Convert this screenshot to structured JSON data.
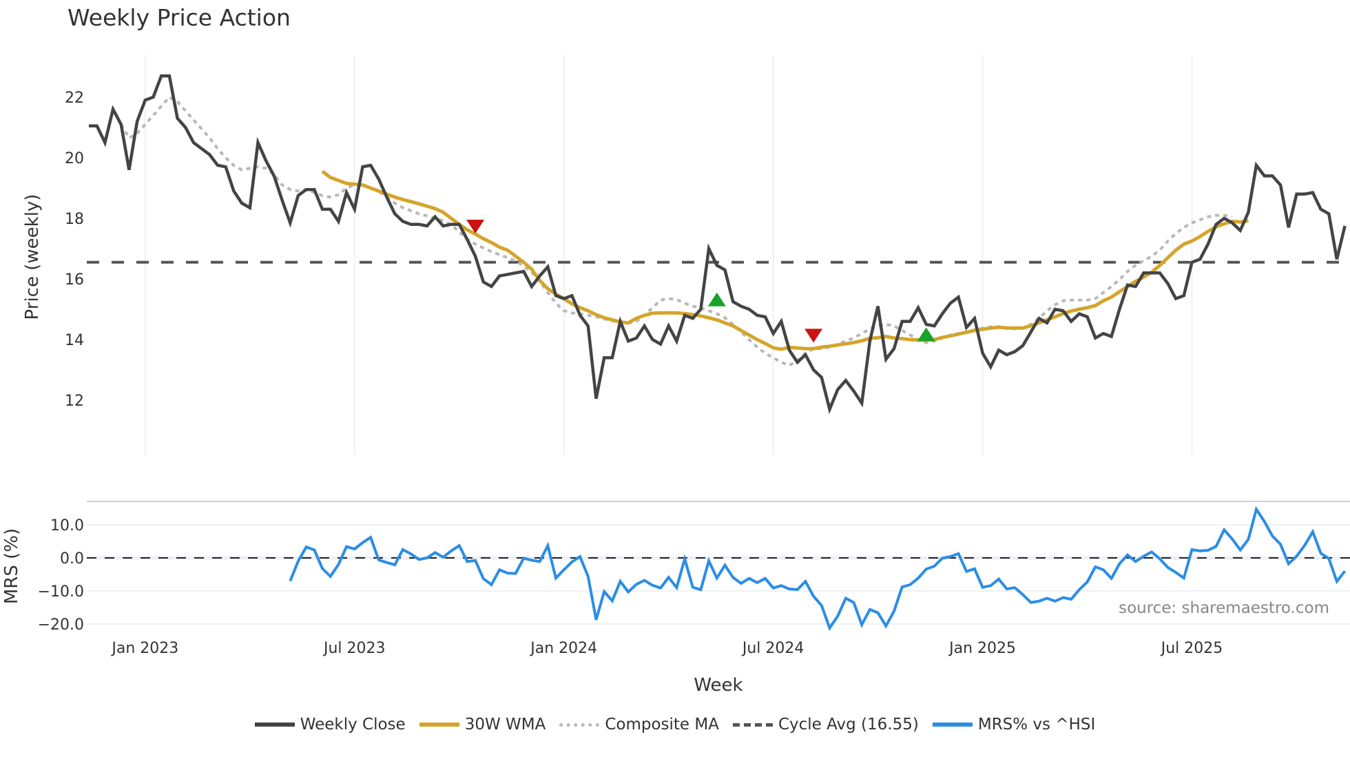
{
  "title": "Weekly Price Action",
  "watermark": "source: sharemaestro.com",
  "axes": {
    "price_ylabel": "Price (weekly)",
    "mrs_ylabel": "MRS (%)",
    "xlabel": "Week",
    "price_ticks": [
      "12",
      "14",
      "16",
      "18",
      "20",
      "22"
    ],
    "mrs_ticks": [
      "10.0",
      "0.0",
      "−10.0",
      "−20.0"
    ],
    "x_ticks": [
      "Jan 2023",
      "Jul 2023",
      "Jan 2024",
      "Jul 2024",
      "Jan 2025",
      "Jul 2025"
    ]
  },
  "legend": [
    {
      "label": "Weekly Close",
      "style": "solid-dark"
    },
    {
      "label": "30W WMA",
      "style": "gold"
    },
    {
      "label": "Composite MA",
      "style": "dot"
    },
    {
      "label": "Cycle Avg (16.55)",
      "style": "dash"
    },
    {
      "label": "MRS% vs ^HSI",
      "style": "blue"
    }
  ],
  "colors": {
    "close": "#444444",
    "wma": "#d4a52b",
    "composite": "#b8b8b8",
    "cycle": "#555555",
    "mrs": "#2b8de6",
    "sell_marker": "#cc1111",
    "buy_marker": "#1aa32a",
    "grid": "#eef0f4"
  },
  "chart_data": [
    {
      "type": "line",
      "title": "Weekly Price Action",
      "xlabel": "Week",
      "ylabel": "Price (weekly)",
      "ylim": [
        11,
        23.3
      ],
      "grid": true,
      "legend_position": "bottom",
      "x_tick_labels": [
        "Jan 2023",
        "Jul 2023",
        "Jan 2024",
        "Jul 2024",
        "Jan 2025",
        "Jul 2025"
      ],
      "x_tick_week_index": [
        7,
        33,
        59,
        85,
        111,
        137
      ],
      "y_ticks": [
        12,
        14,
        16,
        18,
        20,
        22
      ],
      "series": [
        {
          "name": "Weekly Close",
          "start_week": 0,
          "values": [
            21.05,
            21.05,
            20.5,
            21.6,
            21.1,
            19.6,
            21.2,
            21.9,
            22.0,
            22.7,
            22.7,
            21.3,
            21.0,
            20.5,
            20.3,
            20.1,
            19.75,
            19.7,
            18.9,
            18.5,
            18.35,
            20.5,
            19.9,
            19.4,
            18.6,
            17.85,
            18.75,
            18.95,
            18.95,
            18.3,
            18.3,
            17.9,
            18.85,
            18.3,
            19.7,
            19.75,
            19.3,
            18.7,
            18.15,
            17.9,
            17.8,
            17.8,
            17.75,
            18.05,
            17.75,
            17.8,
            17.8,
            17.3,
            16.75,
            15.9,
            15.75,
            16.1,
            16.15,
            16.2,
            16.25,
            15.75,
            16.1,
            16.4,
            15.45,
            15.35,
            15.45,
            14.8,
            14.45,
            12.05,
            13.4,
            13.4,
            14.6,
            13.95,
            14.05,
            14.45,
            14.0,
            13.85,
            14.45,
            13.95,
            14.8,
            14.7,
            15.0,
            17.0,
            16.45,
            16.3,
            15.25,
            15.1,
            15.0,
            14.8,
            14.75,
            14.2,
            14.6,
            13.65,
            13.25,
            13.5,
            13.0,
            12.75,
            11.7,
            12.35,
            12.65,
            12.3,
            11.9,
            13.95,
            15.1,
            13.35,
            13.7,
            14.6,
            14.6,
            15.05,
            14.5,
            14.45,
            14.85,
            15.2,
            15.4,
            14.4,
            14.7,
            13.55,
            13.1,
            13.65,
            13.5,
            13.6,
            13.8,
            14.25,
            14.7,
            14.55,
            15.0,
            14.95,
            14.6,
            14.85,
            14.75,
            14.05,
            14.2,
            14.1,
            15.0,
            15.8,
            15.75,
            16.2,
            16.2,
            16.2,
            15.85,
            15.35,
            15.45,
            16.55,
            16.65,
            17.15,
            17.8,
            18.0,
            17.85,
            17.6,
            18.2,
            19.75,
            19.4,
            19.4,
            19.1,
            17.7,
            18.8,
            18.8,
            18.85,
            18.3,
            18.15,
            16.65,
            17.75
          ]
        },
        {
          "name": "30W WMA",
          "start_week": 29,
          "values": [
            19.55,
            19.35,
            19.25,
            19.15,
            19.13,
            19.1,
            19.0,
            18.9,
            18.8,
            18.7,
            18.62,
            18.55,
            18.48,
            18.4,
            18.32,
            18.2,
            18.0,
            17.8,
            17.62,
            17.48,
            17.33,
            17.2,
            17.05,
            16.95,
            16.75,
            16.55,
            16.32,
            15.95,
            15.68,
            15.5,
            15.35,
            15.18,
            15.05,
            14.95,
            14.82,
            14.72,
            14.65,
            14.58,
            14.55,
            14.7,
            14.8,
            14.87,
            14.88,
            14.88,
            14.88,
            14.86,
            14.82,
            14.78,
            14.72,
            14.65,
            14.55,
            14.45,
            14.3,
            14.15,
            14.0,
            13.87,
            13.73,
            13.68,
            13.74,
            13.72,
            13.7,
            13.7,
            13.75,
            13.78,
            13.82,
            13.86,
            13.9,
            13.96,
            14.04,
            14.06,
            14.1,
            14.05,
            14.03,
            14.0,
            13.98,
            13.98,
            14.0,
            14.07,
            14.12,
            14.18,
            14.24,
            14.3,
            14.34,
            14.38,
            14.41,
            14.38,
            14.38,
            14.38,
            14.46,
            14.55,
            14.65,
            14.75,
            14.86,
            14.94,
            15.0,
            15.05,
            15.12,
            15.28,
            15.4,
            15.58,
            15.75,
            15.92,
            16.06,
            16.22,
            16.45,
            16.7,
            16.95,
            17.15,
            17.25,
            17.4,
            17.57,
            17.72,
            17.82,
            17.9,
            17.88,
            17.92
          ]
        },
        {
          "name": "Composite MA",
          "start_week": 4,
          "values": [
            21.1,
            20.65,
            20.8,
            21.1,
            21.4,
            21.7,
            22.0,
            21.85,
            21.55,
            21.25,
            20.95,
            20.65,
            20.3,
            20.0,
            19.75,
            19.6,
            19.65,
            19.7,
            19.65,
            19.45,
            19.1,
            18.95,
            18.9,
            18.95,
            18.85,
            18.75,
            18.7,
            18.78,
            19.0,
            19.1,
            19.1,
            19.0,
            18.9,
            18.7,
            18.5,
            18.35,
            18.25,
            18.15,
            18.08,
            18.0,
            17.92,
            17.8,
            17.55,
            17.3,
            17.15,
            17.02,
            16.9,
            16.8,
            16.7,
            16.6,
            16.42,
            16.22,
            15.92,
            15.55,
            15.2,
            14.95,
            14.88,
            14.85,
            14.8,
            14.75,
            14.68,
            14.62,
            14.55,
            14.55,
            14.6,
            14.8,
            15.05,
            15.3,
            15.35,
            15.32,
            15.2,
            15.1,
            15.05,
            14.95,
            14.85,
            14.72,
            14.5,
            14.25,
            14.0,
            13.75,
            13.55,
            13.4,
            13.25,
            13.15,
            13.3,
            13.55,
            13.7,
            13.7,
            13.75,
            13.85,
            13.95,
            14.05,
            14.2,
            14.35,
            14.45,
            14.5,
            14.45,
            14.3,
            14.15,
            14.0,
            13.9,
            13.95,
            14.05,
            14.15,
            14.2,
            14.25,
            14.32,
            14.38,
            14.42,
            14.42,
            14.4,
            14.35,
            14.38,
            14.5,
            14.7,
            14.95,
            15.15,
            15.28,
            15.3,
            15.3,
            15.3,
            15.35,
            15.55,
            15.75,
            15.98,
            16.25,
            16.45,
            16.6,
            16.75,
            16.95,
            17.25,
            17.5,
            17.7,
            17.85,
            17.95,
            18.05,
            18.1,
            18.1,
            18.05
          ]
        },
        {
          "name": "Cycle Avg (16.55)",
          "constant": 16.55
        },
        {
          "name": "MRS% vs ^HSI",
          "start_week": 25,
          "axis": "mrs",
          "values": [
            -7.0,
            -1.0,
            3.3,
            2.4,
            -3.2,
            -5.6,
            -2.0,
            3.4,
            2.7,
            4.6,
            6.2,
            -0.6,
            -1.4,
            -2.1,
            2.5,
            1.2,
            -0.5,
            0.0,
            1.6,
            0.2,
            2.1,
            3.7,
            -1.1,
            -0.8,
            -6.3,
            -8.1,
            -3.6,
            -4.6,
            -4.7,
            -0.1,
            -0.7,
            -1.1,
            3.7,
            -6.1,
            -3.6,
            -1.2,
            0.4,
            -5.6,
            -18.7,
            -10.2,
            -13.0,
            -7.1,
            -10.3,
            -8.0,
            -6.8,
            -8.3,
            -9.1,
            -5.9,
            -9.0,
            -0.3,
            -8.9,
            -9.6,
            -0.9,
            -6.1,
            -2.2,
            -5.9,
            -7.7,
            -6.2,
            -7.5,
            -6.2,
            -9.1,
            -8.4,
            -9.4,
            -9.6,
            -7.1,
            -11.6,
            -14.4,
            -21.2,
            -17.6,
            -12.2,
            -13.5,
            -20.2,
            -15.6,
            -16.6,
            -20.6,
            -16.1,
            -8.8,
            -8.1,
            -6.1,
            -3.4,
            -2.5,
            -0.1,
            0.4,
            1.3,
            -4.1,
            -3.3,
            -8.9,
            -8.4,
            -6.4,
            -9.4,
            -9.0,
            -11.1,
            -13.5,
            -13.1,
            -12.2,
            -13.1,
            -12.0,
            -12.5,
            -9.6,
            -7.3,
            -2.7,
            -3.6,
            -6.2,
            -1.8,
            0.9,
            -1.1,
            0.5,
            1.8,
            -0.3,
            -2.9,
            -4.4,
            -6.1,
            2.5,
            2.1,
            2.3,
            3.5,
            8.5,
            5.7,
            2.4,
            5.6,
            14.7,
            11.0,
            6.6,
            4.1,
            -1.8,
            0.5,
            3.8,
            7.9,
            1.4,
            -0.2,
            -7.1,
            -4.0
          ]
        }
      ],
      "markers": [
        {
          "type": "sell",
          "week": 48,
          "value": 17.75
        },
        {
          "type": "buy",
          "week": 78,
          "value": 15.3
        },
        {
          "type": "sell",
          "week": 90,
          "value": 14.15
        },
        {
          "type": "buy",
          "week": 104,
          "value": 14.15
        }
      ]
    },
    {
      "type": "line",
      "title": "",
      "xlabel": "Week",
      "ylabel": "MRS (%)",
      "ylim": [
        -23,
        15.5
      ],
      "y_ticks": [
        10,
        0,
        -10,
        -20
      ],
      "reference_line": 0,
      "series_ref": "MRS% vs ^HSI"
    }
  ]
}
